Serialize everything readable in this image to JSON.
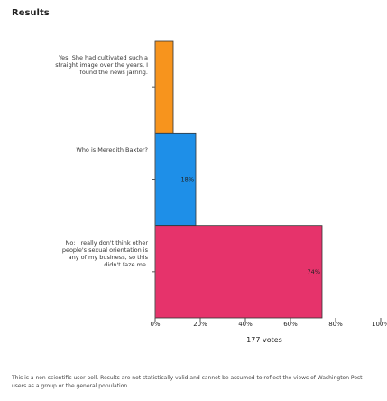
{
  "chart_data": {
    "type": "bar",
    "orientation": "horizontal",
    "title": "Results",
    "categories": [
      "Yes: She had cultivated such a straight image over the years, I found the news jarring.",
      "Who is Meredith Baxter?",
      "No: I really don't think other people's sexual orientation is any of my business, so this didn't faze me."
    ],
    "values": [
      8,
      18,
      74
    ],
    "value_labels": [
      null,
      "18%",
      "74%"
    ],
    "colors": [
      "#f7941d",
      "#1e8fe8",
      "#e6336b"
    ],
    "xlim": [
      0,
      100
    ],
    "xticks": [
      {
        "value": 0,
        "label": "0%"
      },
      {
        "value": 20,
        "label": "20%"
      },
      {
        "value": 40,
        "label": "40%"
      },
      {
        "value": 60,
        "label": "60%"
      },
      {
        "value": 80,
        "label": "80%"
      },
      {
        "value": 100,
        "label": "100%"
      }
    ],
    "xlabel": "177 votes",
    "note": "This is a non-scientific user poll. Results are not statistically valid and cannot be assumed to reflect the views of Washington Post users as a group or the general population."
  }
}
